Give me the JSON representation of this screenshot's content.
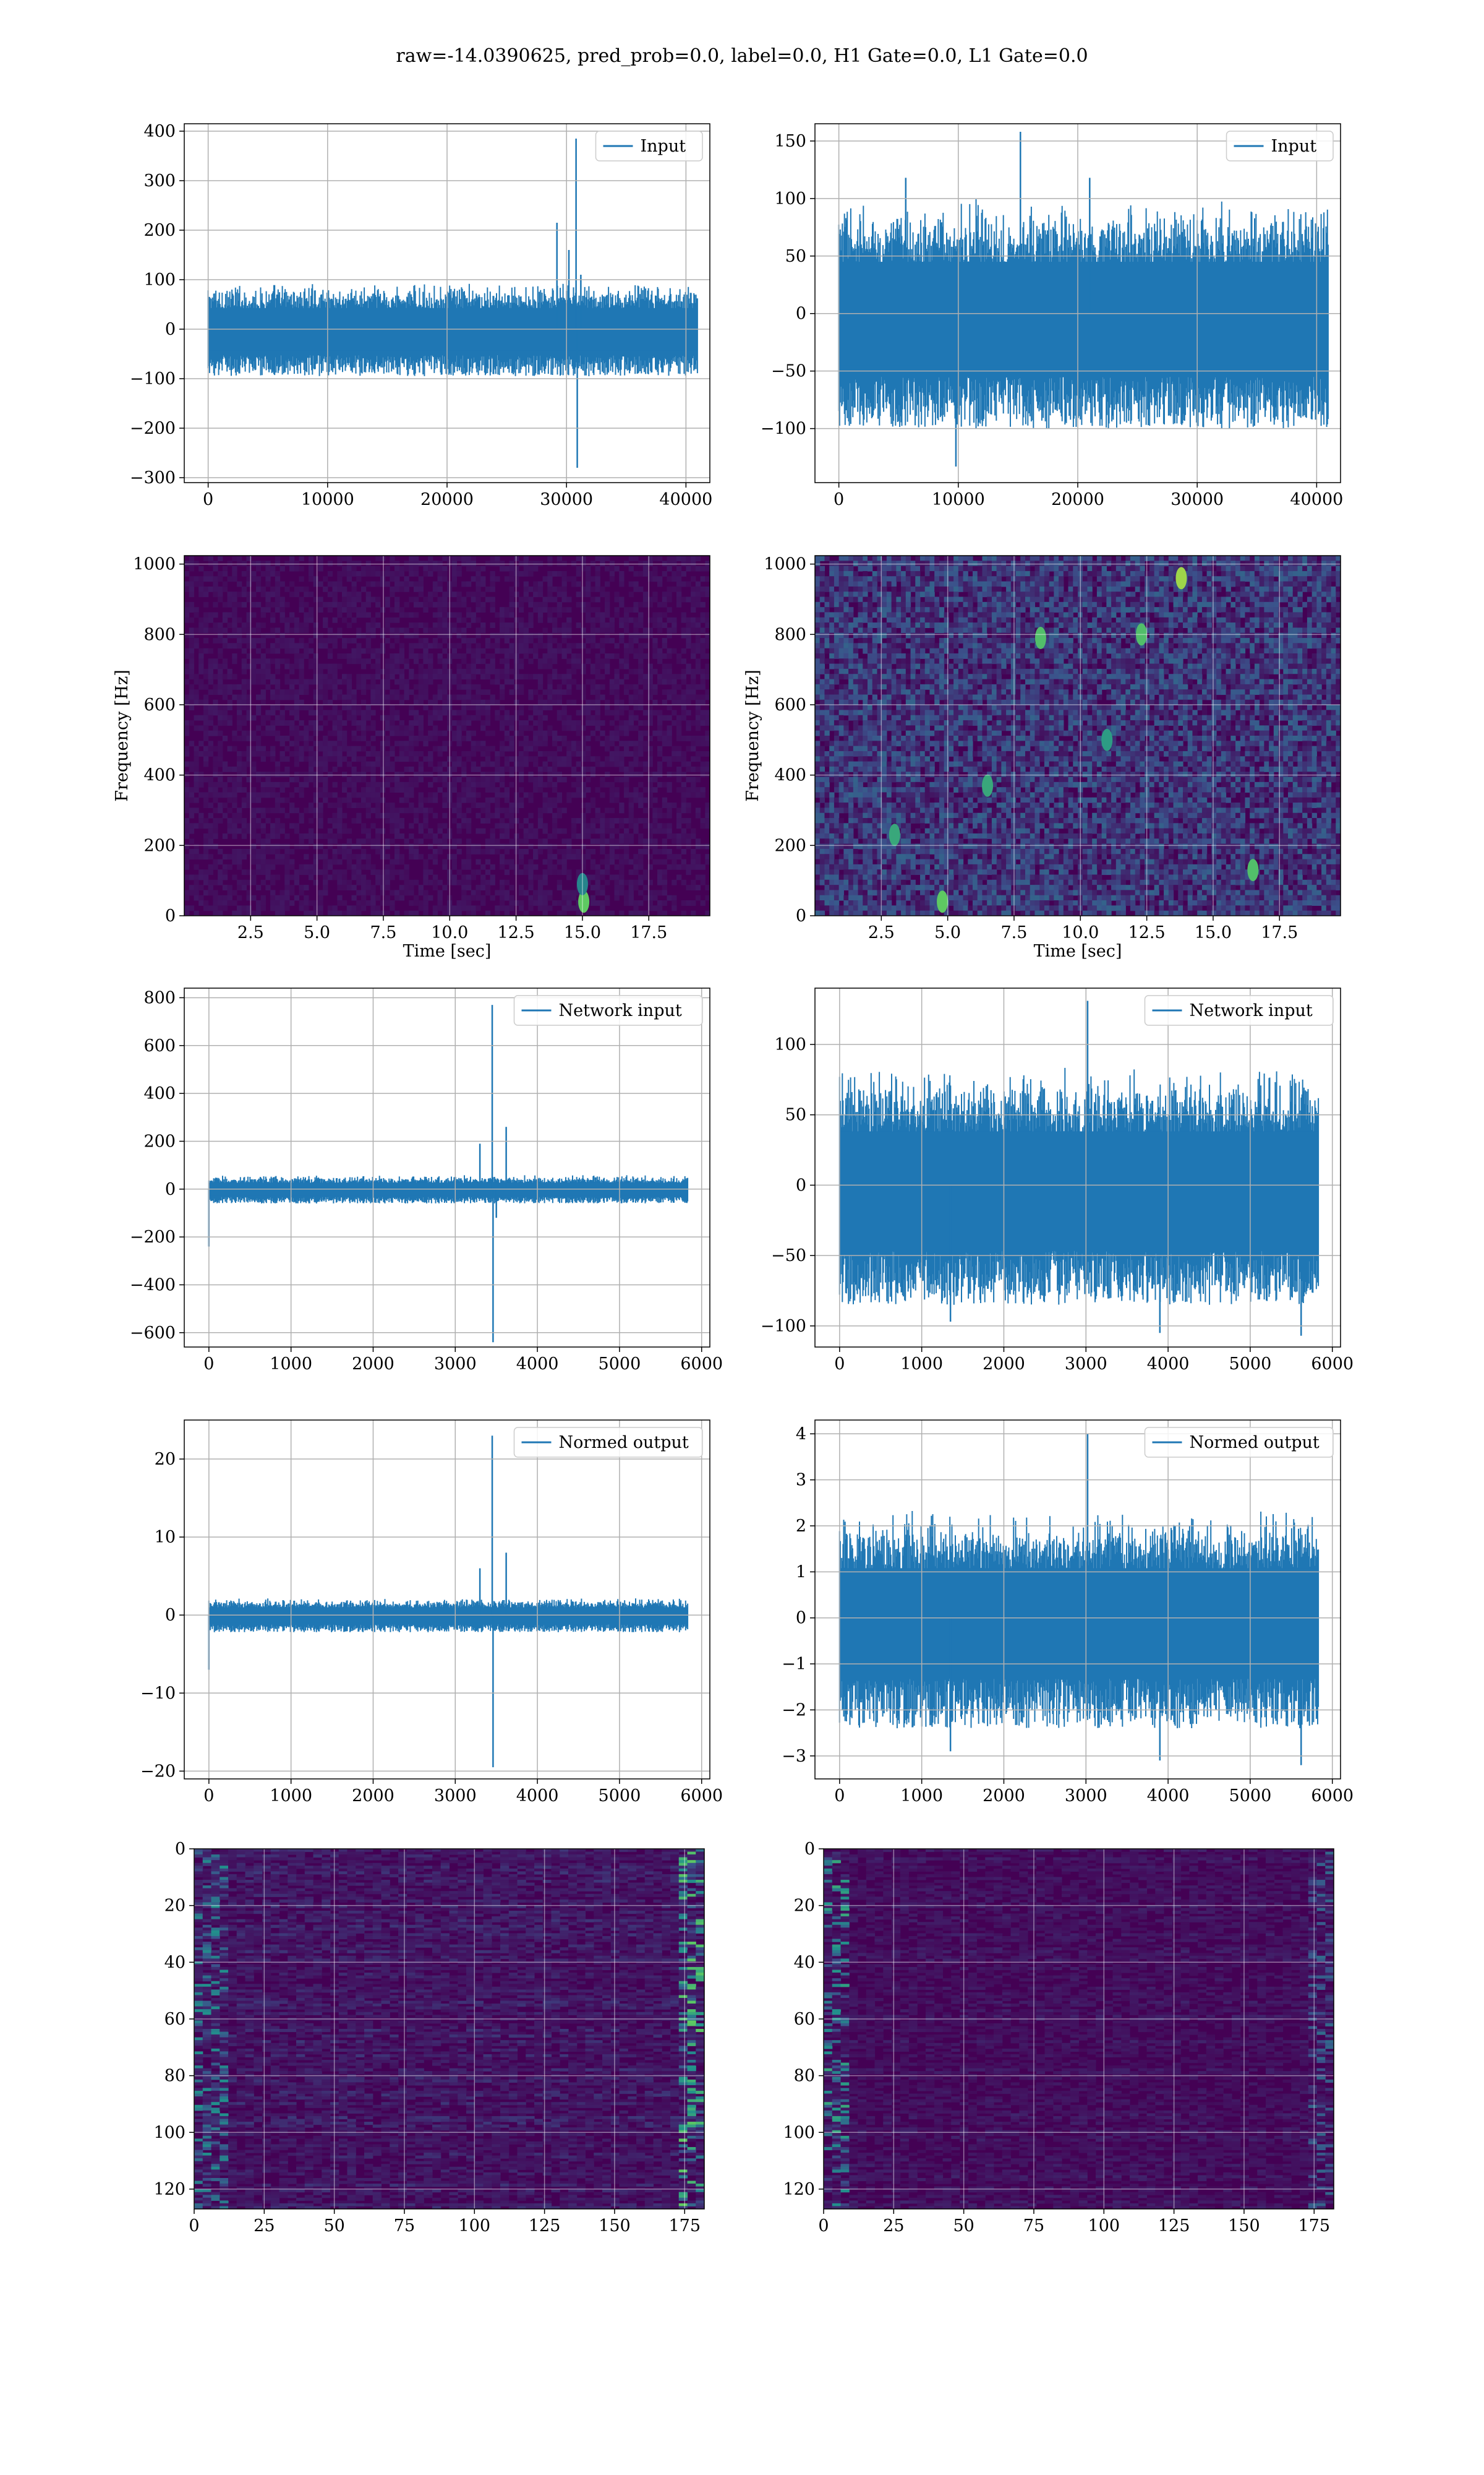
{
  "figure": {
    "suptitle": "raw=-14.0390625, pred_prob=0.0, label=0.0, H1 Gate=0.0, L1 Gate=0.0"
  },
  "colors": {
    "line": "#1f77b4",
    "grid": "#b0b0b0",
    "viridis_low": "#440154",
    "viridis_mid": "#21918c",
    "viridis_high": "#fde725"
  },
  "chart_data": [
    {
      "id": "input_h1",
      "type": "line",
      "legend": "Input",
      "legend_placement": "top-right",
      "xlim": [
        -2000,
        42000
      ],
      "ylim": [
        -310,
        415
      ],
      "xticks": [
        0,
        10000,
        20000,
        30000,
        40000
      ],
      "xtick_labels": [
        "0",
        "10000",
        "20000",
        "30000",
        "40000"
      ],
      "yticks": [
        -300,
        -200,
        -100,
        0,
        100,
        200,
        300,
        400
      ],
      "ytick_labels": [
        "−300",
        "−200",
        "−100",
        "0",
        "100",
        "200",
        "300",
        "400"
      ],
      "grid": true,
      "xlabel": "",
      "ylabel": "",
      "series": [
        {
          "x_range": [
            0,
            40960
          ],
          "baseline": 0,
          "amplitude": 95,
          "spikes": [
            {
              "x": 29200,
              "y": 215
            },
            {
              "x": 30200,
              "y": 160
            },
            {
              "x": 30800,
              "y": 385
            },
            {
              "x": 30900,
              "y": -280
            },
            {
              "x": 31200,
              "y": 110
            }
          ]
        }
      ]
    },
    {
      "id": "input_l1",
      "type": "line",
      "legend": "Input",
      "legend_placement": "top-right",
      "xlim": [
        -2000,
        42000
      ],
      "ylim": [
        -147,
        165
      ],
      "xticks": [
        0,
        10000,
        20000,
        30000,
        40000
      ],
      "xtick_labels": [
        "0",
        "10000",
        "20000",
        "30000",
        "40000"
      ],
      "yticks": [
        -100,
        -50,
        0,
        50,
        100,
        150
      ],
      "ytick_labels": [
        "−100",
        "−50",
        "0",
        "50",
        "100",
        "150"
      ],
      "grid": true,
      "xlabel": "",
      "ylabel": "",
      "series": [
        {
          "x_range": [
            0,
            40960
          ],
          "baseline": 0,
          "amplitude": 100,
          "spikes": [
            {
              "x": 15200,
              "y": 158
            },
            {
              "x": 9800,
              "y": -133
            },
            {
              "x": 21000,
              "y": 118
            },
            {
              "x": 5600,
              "y": 118
            }
          ]
        }
      ]
    },
    {
      "id": "spec_h1",
      "type": "heatmap",
      "xlim": [
        0,
        19.8
      ],
      "ylim": [
        0,
        1024
      ],
      "xticks": [
        2.5,
        5.0,
        7.5,
        10.0,
        12.5,
        15.0,
        17.5
      ],
      "xtick_labels": [
        "2.5",
        "5.0",
        "7.5",
        "10.0",
        "12.5",
        "15.0",
        "17.5"
      ],
      "yticks": [
        0,
        200,
        400,
        600,
        800,
        1000
      ],
      "ytick_labels": [
        "0",
        "200",
        "400",
        "600",
        "800",
        "1000"
      ],
      "grid": true,
      "xlabel": "Time [sec]",
      "ylabel": "Frequency [Hz]",
      "colormap": "viridis",
      "noise_level": 0.07,
      "hotspots": [
        {
          "x": 15.05,
          "y": 40,
          "v": 0.75
        },
        {
          "x": 15.0,
          "y": 90,
          "v": 0.45
        }
      ]
    },
    {
      "id": "spec_l1",
      "type": "heatmap",
      "xlim": [
        0,
        19.8
      ],
      "ylim": [
        0,
        1024
      ],
      "xticks": [
        2.5,
        5.0,
        7.5,
        10.0,
        12.5,
        15.0,
        17.5
      ],
      "xtick_labels": [
        "2.5",
        "5.0",
        "7.5",
        "10.0",
        "12.5",
        "15.0",
        "17.5"
      ],
      "yticks": [
        0,
        200,
        400,
        600,
        800,
        1000
      ],
      "ytick_labels": [
        "0",
        "200",
        "400",
        "600",
        "800",
        "1000"
      ],
      "grid": true,
      "xlabel": "Time [sec]",
      "ylabel": "Frequency [Hz]",
      "colormap": "viridis",
      "noise_level": 0.32,
      "hotspots": [
        {
          "x": 13.8,
          "y": 960,
          "v": 0.85
        },
        {
          "x": 8.5,
          "y": 790,
          "v": 0.7
        },
        {
          "x": 12.3,
          "y": 800,
          "v": 0.7
        },
        {
          "x": 4.8,
          "y": 40,
          "v": 0.75
        },
        {
          "x": 16.5,
          "y": 130,
          "v": 0.7
        },
        {
          "x": 6.5,
          "y": 370,
          "v": 0.6
        },
        {
          "x": 3.0,
          "y": 230,
          "v": 0.6
        },
        {
          "x": 11.0,
          "y": 500,
          "v": 0.55
        }
      ]
    },
    {
      "id": "net_h1",
      "type": "line",
      "legend": "Network input",
      "legend_placement": "top-right",
      "xlim": [
        -300,
        6100
      ],
      "ylim": [
        -660,
        840
      ],
      "xticks": [
        0,
        1000,
        2000,
        3000,
        4000,
        5000,
        6000
      ],
      "xtick_labels": [
        "0",
        "1000",
        "2000",
        "3000",
        "4000",
        "5000",
        "6000"
      ],
      "yticks": [
        -600,
        -400,
        -200,
        0,
        200,
        400,
        600,
        800
      ],
      "ytick_labels": [
        "−600",
        "−400",
        "−200",
        "0",
        "200",
        "400",
        "600",
        "800"
      ],
      "grid": true,
      "xlabel": "",
      "ylabel": "",
      "series": [
        {
          "x_range": [
            0,
            5830
          ],
          "baseline": 0,
          "amplitude": 60,
          "spikes": [
            {
              "x": 3450,
              "y": 770
            },
            {
              "x": 3460,
              "y": -640
            },
            {
              "x": 3620,
              "y": 260
            },
            {
              "x": 3300,
              "y": 190
            },
            {
              "x": 0,
              "y": -240
            },
            {
              "x": 3500,
              "y": -120
            }
          ]
        }
      ]
    },
    {
      "id": "net_l1",
      "type": "line",
      "legend": "Network input",
      "legend_placement": "top-right",
      "xlim": [
        -300,
        6100
      ],
      "ylim": [
        -115,
        140
      ],
      "xticks": [
        0,
        1000,
        2000,
        3000,
        4000,
        5000,
        6000
      ],
      "xtick_labels": [
        "0",
        "1000",
        "2000",
        "3000",
        "4000",
        "5000",
        "6000"
      ],
      "yticks": [
        -100,
        -50,
        0,
        50,
        100
      ],
      "ytick_labels": [
        "−100",
        "−50",
        "0",
        "50",
        "100"
      ],
      "grid": true,
      "xlabel": "",
      "ylabel": "",
      "series": [
        {
          "x_range": [
            0,
            5830
          ],
          "baseline": 0,
          "amplitude": 85,
          "spikes": [
            {
              "x": 3020,
              "y": 131
            },
            {
              "x": 3900,
              "y": -105
            },
            {
              "x": 5620,
              "y": -107
            },
            {
              "x": 1350,
              "y": -97
            }
          ]
        }
      ]
    },
    {
      "id": "norm_h1",
      "type": "line",
      "legend": "Normed output",
      "legend_placement": "top-right",
      "xlim": [
        -300,
        6100
      ],
      "ylim": [
        -21,
        25
      ],
      "xticks": [
        0,
        1000,
        2000,
        3000,
        4000,
        5000,
        6000
      ],
      "xtick_labels": [
        "0",
        "1000",
        "2000",
        "3000",
        "4000",
        "5000",
        "6000"
      ],
      "yticks": [
        -20,
        -10,
        0,
        10,
        20
      ],
      "ytick_labels": [
        "−20",
        "−10",
        "0",
        "10",
        "20"
      ],
      "grid": true,
      "xlabel": "",
      "ylabel": "",
      "series": [
        {
          "x_range": [
            0,
            5830
          ],
          "baseline": 0,
          "amplitude": 2.2,
          "spikes": [
            {
              "x": 3450,
              "y": 23
            },
            {
              "x": 3460,
              "y": -19.5
            },
            {
              "x": 3620,
              "y": 8
            },
            {
              "x": 3300,
              "y": 6
            },
            {
              "x": 0,
              "y": -7
            }
          ]
        }
      ]
    },
    {
      "id": "norm_l1",
      "type": "line",
      "legend": "Normed output",
      "legend_placement": "top-right",
      "xlim": [
        -300,
        6100
      ],
      "ylim": [
        -3.5,
        4.3
      ],
      "xticks": [
        0,
        1000,
        2000,
        3000,
        4000,
        5000,
        6000
      ],
      "xtick_labels": [
        "0",
        "1000",
        "2000",
        "3000",
        "4000",
        "5000",
        "6000"
      ],
      "yticks": [
        -3,
        -2,
        -1,
        0,
        1,
        2,
        3,
        4
      ],
      "ytick_labels": [
        "−3",
        "−2",
        "−1",
        "0",
        "1",
        "2",
        "3",
        "4"
      ],
      "grid": true,
      "xlabel": "",
      "ylabel": "",
      "series": [
        {
          "x_range": [
            0,
            5830
          ],
          "baseline": 0,
          "amplitude": 2.4,
          "spikes": [
            {
              "x": 3020,
              "y": 4.0
            },
            {
              "x": 3900,
              "y": -3.1
            },
            {
              "x": 5620,
              "y": -3.2
            },
            {
              "x": 1350,
              "y": -2.9
            }
          ]
        }
      ]
    },
    {
      "id": "feat_h1",
      "type": "heatmap",
      "xlim": [
        0,
        182
      ],
      "ylim": [
        127,
        0
      ],
      "xticks": [
        0,
        25,
        50,
        75,
        100,
        125,
        150,
        175
      ],
      "xtick_labels": [
        "0",
        "25",
        "50",
        "75",
        "100",
        "125",
        "150",
        "175"
      ],
      "yticks": [
        0,
        20,
        40,
        60,
        80,
        100,
        120
      ],
      "ytick_labels": [
        "0",
        "20",
        "40",
        "60",
        "80",
        "100",
        "120"
      ],
      "grid": true,
      "xlabel": "",
      "ylabel": "",
      "colormap": "viridis",
      "noise_level": 0.18,
      "bright_columns": [
        {
          "from": 0,
          "to": 12,
          "v": 0.5
        },
        {
          "from": 174,
          "to": 182,
          "v": 0.75
        }
      ]
    },
    {
      "id": "feat_l1",
      "type": "heatmap",
      "xlim": [
        0,
        182
      ],
      "ylim": [
        127,
        0
      ],
      "xticks": [
        0,
        25,
        50,
        75,
        100,
        125,
        150,
        175
      ],
      "xtick_labels": [
        "0",
        "25",
        "50",
        "75",
        "100",
        "125",
        "150",
        "175"
      ],
      "yticks": [
        0,
        20,
        40,
        60,
        80,
        100,
        120
      ],
      "ytick_labels": [
        "0",
        "20",
        "40",
        "60",
        "80",
        "100",
        "120"
      ],
      "grid": true,
      "xlabel": "",
      "ylabel": "",
      "colormap": "viridis",
      "noise_level": 0.12,
      "bright_columns": [
        {
          "from": 0,
          "to": 10,
          "v": 0.6
        },
        {
          "from": 174,
          "to": 182,
          "v": 0.35
        }
      ]
    }
  ]
}
